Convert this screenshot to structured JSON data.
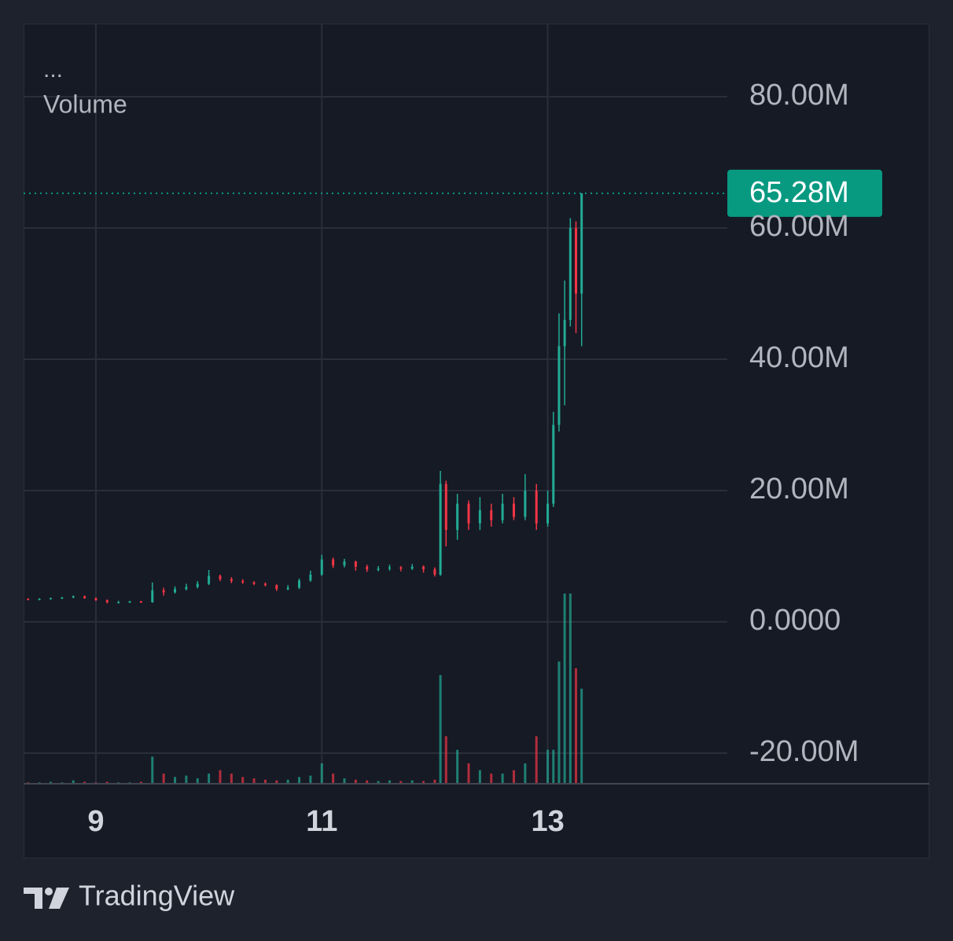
{
  "chart_data": {
    "type": "candlestick",
    "legend_menu": "...",
    "legend_title": "Volume",
    "source": "TradingView",
    "up_color": "#22ab94",
    "down_color": "#f23645",
    "x": [
      8.4,
      8.5,
      8.6,
      8.7,
      8.8,
      8.9,
      9.0,
      9.1,
      9.2,
      9.3,
      9.4,
      9.5,
      9.6,
      9.7,
      9.8,
      9.9,
      10.0,
      10.1,
      10.2,
      10.3,
      10.4,
      10.5,
      10.6,
      10.7,
      10.8,
      10.9,
      11.0,
      11.1,
      11.2,
      11.3,
      11.4,
      11.5,
      11.6,
      11.7,
      11.8,
      11.9,
      12.0,
      12.05,
      12.1,
      12.2,
      12.3,
      12.4,
      12.5,
      12.6,
      12.7,
      12.8,
      12.9,
      13.0,
      13.05,
      13.1,
      13.15,
      13.2,
      13.25,
      13.3
    ],
    "open": [
      3.5,
      3.4,
      3.5,
      3.6,
      3.7,
      3.9,
      3.6,
      3.3,
      3.0,
      3.0,
      3.1,
      3.0,
      4.8,
      4.5,
      5.0,
      5.3,
      5.8,
      7.0,
      6.5,
      6.2,
      6.0,
      5.8,
      5.6,
      5.0,
      5.2,
      6.3,
      7.2,
      9.5,
      8.6,
      9.2,
      8.4,
      8.0,
      8.1,
      8.3,
      8.1,
      8.4,
      8.0,
      7.2,
      21,
      14,
      18,
      15,
      17,
      15.5,
      18,
      16,
      20,
      15,
      18,
      30,
      42,
      46,
      60,
      50
    ],
    "high": [
      3.6,
      3.6,
      3.7,
      3.8,
      4.0,
      4.0,
      3.7,
      3.4,
      3.2,
      3.2,
      3.2,
      6.0,
      5.2,
      5.4,
      5.8,
      6.2,
      7.9,
      7.2,
      6.8,
      6.5,
      6.2,
      6.0,
      5.7,
      5.6,
      6.6,
      7.8,
      10.2,
      9.8,
      9.6,
      9.3,
      8.7,
      8.5,
      8.7,
      8.5,
      8.8,
      8.6,
      8.3,
      23,
      21.5,
      19.5,
      18.5,
      19,
      18,
      19.5,
      19,
      22.5,
      21,
      20,
      32,
      47,
      52,
      61.5,
      61,
      65.28
    ],
    "low": [
      3.3,
      3.3,
      3.4,
      3.5,
      3.6,
      3.5,
      3.2,
      2.8,
      2.9,
      2.9,
      2.9,
      2.9,
      4.0,
      4.3,
      4.8,
      5.1,
      5.6,
      6.2,
      5.9,
      5.8,
      5.6,
      5.4,
      4.7,
      4.8,
      5.0,
      6.1,
      7.0,
      8.2,
      8.3,
      7.8,
      7.6,
      7.7,
      7.8,
      7.7,
      7.9,
      7.5,
      6.9,
      7.0,
      11.5,
      12.5,
      14,
      14,
      14.5,
      15,
      15.5,
      15.5,
      14,
      14.5,
      17.5,
      29,
      33,
      45,
      44,
      42
    ],
    "close": [
      3.4,
      3.5,
      3.6,
      3.7,
      3.9,
      3.6,
      3.3,
      3.0,
      3.0,
      3.1,
      3.0,
      4.8,
      4.5,
      5.0,
      5.3,
      5.8,
      7.0,
      6.5,
      6.2,
      6.0,
      5.8,
      5.6,
      5.0,
      5.2,
      6.3,
      7.2,
      9.5,
      8.6,
      9.2,
      8.4,
      8.0,
      8.1,
      8.3,
      8.1,
      8.4,
      8.0,
      7.2,
      21,
      14,
      18,
      15,
      17,
      15.5,
      18,
      16,
      20,
      15,
      18,
      30,
      42,
      46,
      60,
      50,
      65.28
    ],
    "volume": [
      0.2,
      0.2,
      0.3,
      0.2,
      0.5,
      0.3,
      0.2,
      0.3,
      0.2,
      0.2,
      0.3,
      4,
      1.5,
      1,
      1.2,
      0.8,
      1.5,
      2,
      1.5,
      1,
      0.8,
      0.6,
      0.5,
      0.6,
      1,
      1.2,
      3,
      1.5,
      0.8,
      0.6,
      0.5,
      0.4,
      0.5,
      0.4,
      0.5,
      0.4,
      0.6,
      16,
      7,
      5,
      3,
      2,
      1.5,
      1.5,
      2,
      3,
      7,
      5,
      5,
      18,
      28,
      28,
      17,
      14
    ],
    "last_price": {
      "value": 65.28,
      "label": "65.28M"
    },
    "last_price_color": "#089981",
    "xlim": [
      8.36,
      14.59
    ],
    "xticks": [
      9,
      11,
      13
    ],
    "ylim": [
      -24.67,
      91.14
    ],
    "yticks": [
      {
        "value": -20,
        "label": "-20.00M"
      },
      {
        "value": 0,
        "label": "0.0000"
      },
      {
        "value": 20,
        "label": "20.00M"
      },
      {
        "value": 40,
        "label": "40.00M"
      },
      {
        "value": 60,
        "label": "60.00M"
      },
      {
        "value": 80,
        "label": "80.00M"
      }
    ],
    "grid": true
  }
}
